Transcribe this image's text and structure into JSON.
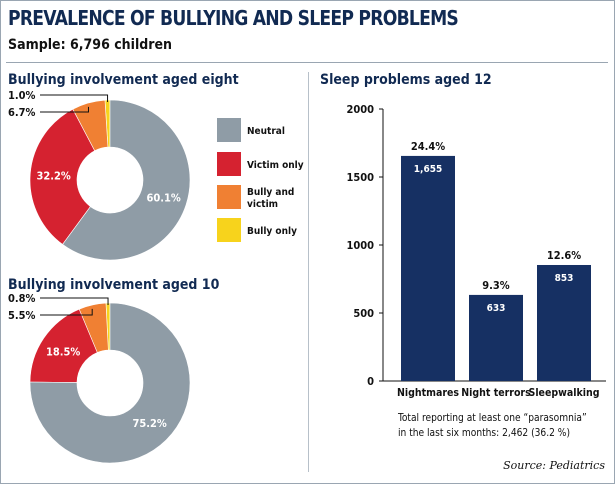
{
  "title": "PREVALENCE OF BULLYING AND SLEEP PROBLEMS",
  "sample": "Sample: 6,796 children",
  "source": "Source: Pediatrics",
  "colors": {
    "title": "#112a52",
    "neutral": "#8f9ca6",
    "victim": "#d52230",
    "bully_victim": "#f08033",
    "bully": "#f7d31c",
    "bar": "#163063"
  },
  "chart_data": [
    {
      "type": "pie",
      "title": "Bullying involvement aged eight",
      "labels": [
        "Neutral",
        "Victim only",
        "Bully and victim",
        "Bully only"
      ],
      "values": [
        60.1,
        32.2,
        6.7,
        1.0
      ],
      "value_labels": [
        "60.1%",
        "32.2%",
        "6.7%",
        "1.0%"
      ],
      "donut": true
    },
    {
      "type": "pie",
      "title": "Bullying involvement aged 10",
      "labels": [
        "Neutral",
        "Victim only",
        "Bully and victim",
        "Bully only"
      ],
      "values": [
        75.2,
        18.5,
        5.5,
        0.8
      ],
      "value_labels": [
        "75.2%",
        "18.5%",
        "5.5%",
        "0.8%"
      ],
      "donut": true
    },
    {
      "type": "bar",
      "title": "Sleep problems aged 12",
      "categories": [
        "Nightmares",
        "Night terrors",
        "Sleepwalking"
      ],
      "values": [
        1655,
        633,
        853
      ],
      "value_labels": [
        "1,655",
        "633",
        "853"
      ],
      "percent_labels": [
        "24.4%",
        "9.3%",
        "12.6%"
      ],
      "ylim": [
        0,
        2000
      ],
      "yticks": [
        "0",
        "500",
        "1000",
        "1500",
        "2000"
      ],
      "note_lines": [
        "Total reporting at least one “parasomnia”",
        "in the last six months: 2,462 (36.2 %)"
      ]
    }
  ],
  "legend": [
    {
      "label_lines": [
        "Neutral"
      ],
      "color_key": "neutral"
    },
    {
      "label_lines": [
        "Victim only"
      ],
      "color_key": "victim"
    },
    {
      "label_lines": [
        "Bully and",
        "victim"
      ],
      "color_key": "bully_victim"
    },
    {
      "label_lines": [
        "Bully only"
      ],
      "color_key": "bully"
    }
  ]
}
